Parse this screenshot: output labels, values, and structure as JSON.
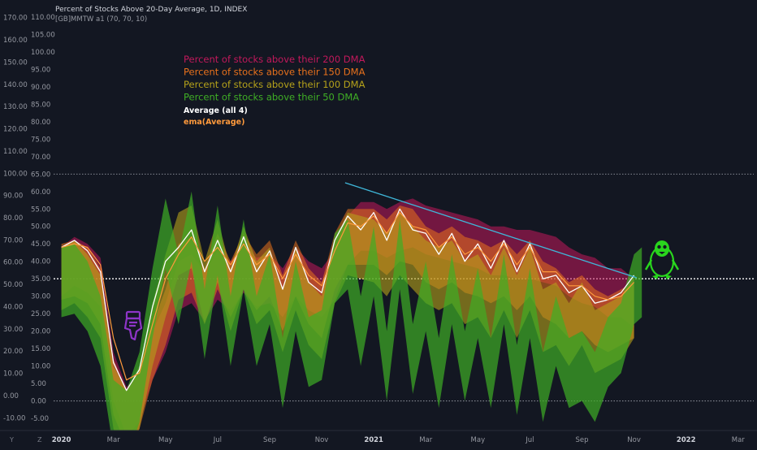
{
  "header": {
    "title": "Percent of Stocks Above 20-Day Average, 1D, INDEX",
    "subtitle": "[GB]MMTW a1 (70, 70, 10)"
  },
  "legend": [
    {
      "label": "Percent of stocks above their 200 DMA",
      "color": "#c2185b"
    },
    {
      "label": "Percent of stocks above their 150 DMA",
      "color": "#e8711c"
    },
    {
      "label": "Percent of stocks above their 100 DMA",
      "color": "#b5a21a"
    },
    {
      "label": "Percent of stocks above their 50 DMA",
      "color": "#3fae25"
    },
    {
      "label": "Average (all 4)",
      "color": "#ffffff"
    },
    {
      "label": "ema(Average)",
      "color": "#ff9a3c"
    }
  ],
  "axis_corner": {
    "left": "Y",
    "right": "Z"
  },
  "chart_data": {
    "type": "area",
    "y_axis_outer": {
      "ticks": [
        "170.00",
        "160.00",
        "150.00",
        "140.00",
        "130.00",
        "120.00",
        "110.00",
        "100.00",
        "90.00",
        "80.00",
        "70.00",
        "60.00",
        "50.00",
        "40.00",
        "30.00",
        "20.00",
        "10.00",
        "0.00",
        "-10.00"
      ],
      "ylim": [
        -15,
        175
      ]
    },
    "y_axis_inner": {
      "ticks": [
        "110.00",
        "105.00",
        "100.00",
        "95.00",
        "90.00",
        "85.00",
        "80.00",
        "75.00",
        "70.00",
        "65.00",
        "60.00",
        "55.00",
        "50.00",
        "45.00",
        "40.00",
        "35.00",
        "30.00",
        "25.00",
        "20.00",
        "15.00",
        "10.00",
        "5.00",
        "0.00",
        "-5.00"
      ],
      "ylim": [
        -8,
        113
      ]
    },
    "x_labels": [
      {
        "label": "2020",
        "t": 0,
        "year": true
      },
      {
        "label": "Mar",
        "t": 2
      },
      {
        "label": "May",
        "t": 4
      },
      {
        "label": "Jul",
        "t": 6
      },
      {
        "label": "Sep",
        "t": 8
      },
      {
        "label": "Nov",
        "t": 10
      },
      {
        "label": "2021",
        "t": 12,
        "year": true
      },
      {
        "label": "Mar",
        "t": 14
      },
      {
        "label": "May",
        "t": 16
      },
      {
        "label": "Jul",
        "t": 18
      },
      {
        "label": "Sep",
        "t": 20
      },
      {
        "label": "Nov",
        "t": 22
      },
      {
        "label": "2022",
        "t": 24,
        "year": true
      },
      {
        "label": "Mar",
        "t": 26
      }
    ],
    "xlim": [
      -0.3,
      26.6
    ],
    "reference_lines": [
      {
        "name": "upper-level",
        "y": 65,
        "style": "dotted",
        "color": "#9598a1"
      },
      {
        "name": "middle-level",
        "y": 35,
        "style": "dotted",
        "color": "#ffffff"
      },
      {
        "name": "zero-level",
        "y": 0,
        "style": "dotted",
        "color": "#9598a1"
      }
    ],
    "trendline": {
      "x1": 10.9,
      "y1": 62.5,
      "x2": 22.1,
      "y2": 35.3,
      "color": "#3fb7d9"
    },
    "series": [
      {
        "name": "Percent of stocks above their 200 DMA",
        "color": "#c2185b",
        "opacity": 0.55,
        "t": [
          0,
          0.5,
          1,
          1.5,
          2,
          2.5,
          3,
          3.5,
          4,
          4.5,
          5,
          5.5,
          6,
          6.5,
          7,
          7.5,
          8,
          8.5,
          9,
          9.5,
          10,
          10.5,
          11,
          11.5,
          12,
          12.5,
          13,
          13.5,
          14,
          14.5,
          15,
          15.5,
          16,
          16.5,
          17,
          17.5,
          18,
          18.5,
          19,
          19.5,
          20,
          20.5,
          21,
          21.5,
          22
        ],
        "values": [
          44,
          47,
          45,
          41,
          14,
          4,
          8,
          20,
          28,
          40,
          42,
          37,
          43,
          40,
          45,
          41,
          42,
          38,
          44,
          40,
          38,
          43,
          53,
          57,
          57,
          55,
          57,
          58,
          56,
          55,
          54,
          53,
          52,
          50,
          50,
          49,
          49,
          48,
          47,
          44,
          42,
          41,
          38,
          38,
          35
        ]
      },
      {
        "name": "Percent of stocks above their 150 DMA",
        "color": "#e8711c",
        "opacity": 0.55,
        "t": [
          0,
          0.5,
          1,
          1.5,
          2,
          2.5,
          3,
          3.5,
          4,
          4.5,
          5,
          5.5,
          6,
          6.5,
          7,
          7.5,
          8,
          8.5,
          9,
          9.5,
          10,
          10.5,
          11,
          11.5,
          12,
          12.5,
          13,
          13.5,
          14,
          14.5,
          15,
          15.5,
          16,
          16.5,
          17,
          17.5,
          18,
          18.5,
          19,
          19.5,
          20,
          20.5,
          21,
          21.5,
          22
        ],
        "values": [
          45,
          46,
          44,
          38,
          12,
          3,
          8,
          22,
          32,
          45,
          47,
          38,
          48,
          40,
          48,
          42,
          46,
          36,
          46,
          38,
          34,
          48,
          55,
          55,
          55,
          52,
          56,
          55,
          50,
          48,
          50,
          47,
          46,
          44,
          46,
          42,
          46,
          40,
          38,
          34,
          36,
          32,
          30,
          32,
          34
        ]
      },
      {
        "name": "Percent of stocks above their 100 DMA",
        "color": "#b5a21a",
        "opacity": 0.6,
        "t": [
          0,
          0.5,
          1,
          1.5,
          2,
          2.5,
          3,
          3.5,
          4,
          4.5,
          5,
          5.5,
          6,
          6.5,
          7,
          7.5,
          8,
          8.5,
          9,
          9.5,
          10,
          10.5,
          11,
          11.5,
          12,
          12.5,
          13,
          13.5,
          14,
          14.5,
          15,
          15.5,
          16,
          16.5,
          17,
          17.5,
          18,
          18.5,
          19,
          19.5,
          20,
          20.5,
          21,
          21.5,
          22
        ],
        "values": [
          44,
          46,
          42,
          36,
          10,
          3,
          10,
          28,
          42,
          54,
          56,
          40,
          52,
          38,
          50,
          40,
          44,
          32,
          44,
          34,
          30,
          46,
          54,
          53,
          52,
          48,
          54,
          50,
          46,
          44,
          46,
          40,
          42,
          36,
          44,
          36,
          44,
          32,
          34,
          28,
          34,
          26,
          28,
          30,
          36
        ]
      },
      {
        "name": "Percent of stocks above their 50 DMA",
        "color": "#3fae25",
        "opacity": 0.7,
        "t": [
          0,
          0.5,
          1,
          1.5,
          2,
          2.5,
          3,
          3.5,
          4,
          4.5,
          5,
          5.5,
          6,
          6.5,
          7,
          7.5,
          8,
          8.5,
          9,
          9.5,
          10,
          10.5,
          11,
          11.5,
          12,
          12.5,
          13,
          13.5,
          14,
          14.5,
          15,
          15.5,
          16,
          16.5,
          17,
          17.5,
          18,
          18.5,
          19,
          19.5,
          20,
          20.5,
          21,
          21.5,
          22,
          22.3
        ],
        "values": [
          44,
          45,
          40,
          30,
          6,
          3,
          14,
          38,
          58,
          42,
          60,
          32,
          56,
          30,
          52,
          30,
          42,
          18,
          40,
          24,
          26,
          48,
          52,
          30,
          50,
          20,
          52,
          22,
          40,
          18,
          42,
          20,
          38,
          18,
          42,
          16,
          38,
          14,
          30,
          18,
          20,
          14,
          24,
          28,
          42,
          44
        ]
      },
      {
        "name": "Average (all 4)",
        "color": "#ffffff",
        "opacity": 1,
        "t": [
          0,
          0.5,
          1,
          1.5,
          2,
          2.5,
          3,
          3.5,
          4,
          4.5,
          5,
          5.5,
          6,
          6.5,
          7,
          7.5,
          8,
          8.5,
          9,
          9.5,
          10,
          10.5,
          11,
          11.5,
          12,
          12.5,
          13,
          13.5,
          14,
          14.5,
          15,
          15.5,
          16,
          16.5,
          17,
          17.5,
          18,
          18.5,
          19,
          19.5,
          20,
          20.5,
          21,
          21.5,
          22
        ],
        "values": [
          44,
          46,
          43,
          37,
          11,
          3,
          9,
          27,
          40,
          44,
          49,
          37,
          46,
          37,
          47,
          37,
          43,
          32,
          44,
          34,
          31,
          46,
          53,
          49,
          54,
          46,
          55,
          49,
          48,
          42,
          48,
          40,
          45,
          38,
          46,
          37,
          45,
          35,
          36,
          31,
          33,
          28,
          29,
          31,
          36
        ]
      },
      {
        "name": "ema(Average)",
        "color": "#ff9a3c",
        "opacity": 1,
        "t": [
          0,
          0.5,
          1,
          1.5,
          2,
          2.5,
          3,
          3.5,
          4,
          4.5,
          5,
          5.5,
          6,
          6.5,
          7,
          7.5,
          8,
          8.5,
          9,
          9.5,
          10,
          10.5,
          11,
          11.5,
          12,
          12.5,
          13,
          13.5,
          14,
          14.5,
          15,
          15.5,
          16,
          16.5,
          17,
          17.5,
          18,
          18.5,
          19,
          19.5,
          20,
          20.5,
          21,
          21.5,
          22
        ],
        "values": [
          44,
          45,
          44,
          39,
          18,
          6,
          8,
          22,
          35,
          42,
          47,
          40,
          44,
          39,
          45,
          39,
          42,
          35,
          42,
          36,
          33,
          43,
          51,
          50,
          53,
          48,
          54,
          50,
          49,
          44,
          47,
          42,
          44,
          40,
          45,
          39,
          44,
          37,
          37,
          33,
          33,
          30,
          29,
          30,
          34
        ]
      }
    ]
  }
}
